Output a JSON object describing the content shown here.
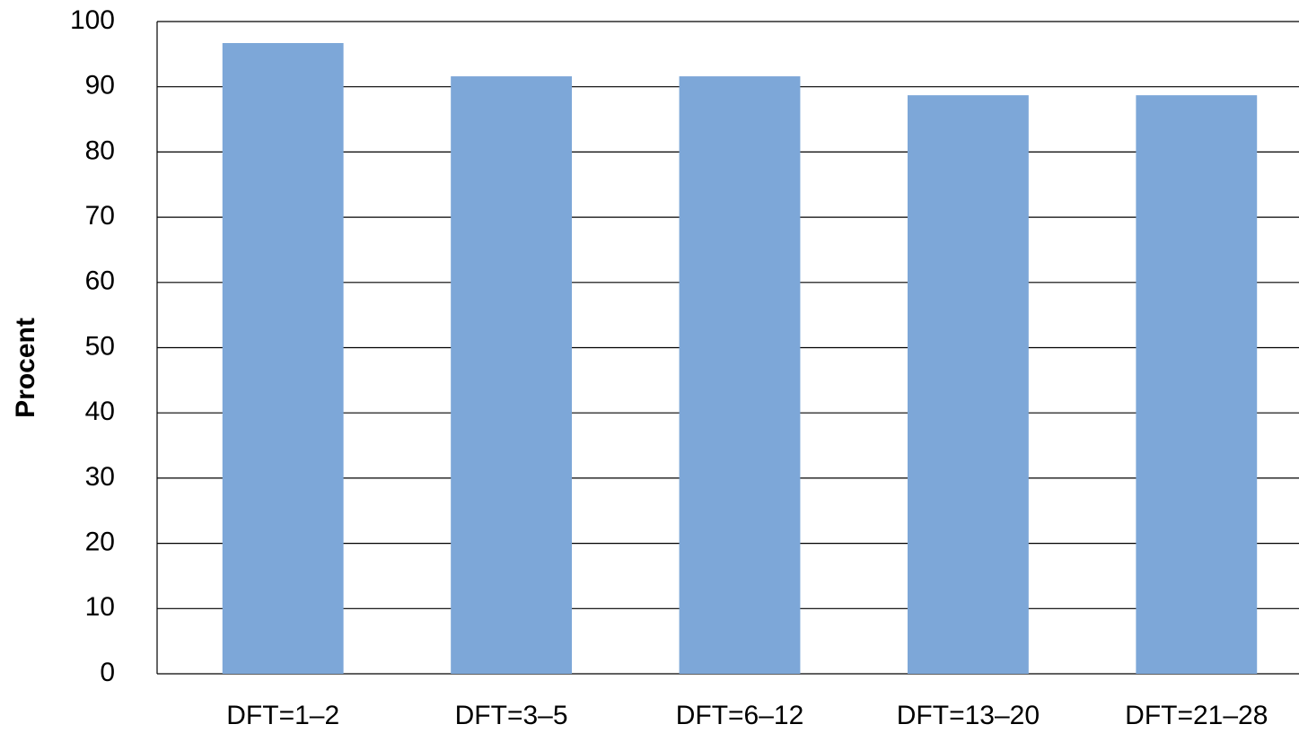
{
  "chart_data": {
    "type": "bar",
    "y_label": "Procent",
    "categories": [
      "DFT=1–2",
      "DFT=3–5",
      "DFT=6–12",
      "DFT=13–20",
      "DFT=21–28"
    ],
    "values": [
      96.7,
      91.6,
      91.6,
      88.7,
      88.7
    ],
    "color": "#7da7d8",
    "ylim": [
      0,
      100
    ],
    "yticks": [
      0,
      10,
      20,
      30,
      40,
      50,
      60,
      70,
      80,
      90,
      100
    ],
    "grid": true
  }
}
